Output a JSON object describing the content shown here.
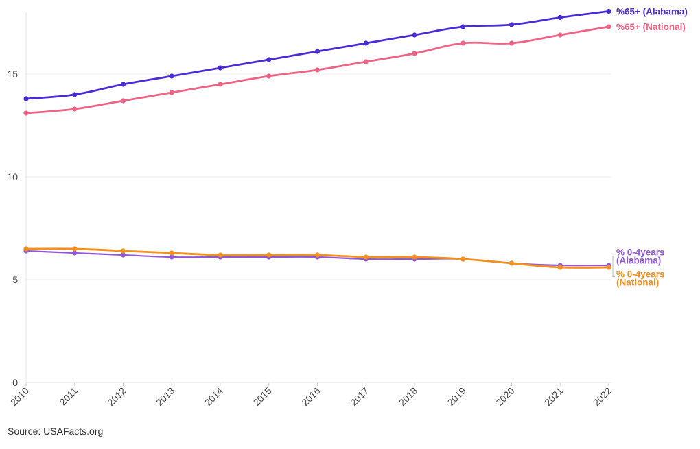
{
  "chart_data": {
    "type": "line",
    "title": "",
    "xlabel": "",
    "ylabel": "",
    "x": [
      "2010",
      "2011",
      "2012",
      "2013",
      "2014",
      "2015",
      "2016",
      "2017",
      "2018",
      "2019",
      "2020",
      "2021",
      "2022"
    ],
    "ylim": [
      0,
      18
    ],
    "yticks": [
      "0",
      "5",
      "10",
      "15"
    ],
    "grid": "horizontal",
    "legend": "end-of-line labels (right)",
    "series": [
      {
        "name": "%65+ (Alabama)",
        "label_lines": [
          "%65+ (Alabama)"
        ],
        "color": "#4a2bd4",
        "values": [
          13.8,
          14.0,
          14.5,
          14.9,
          15.3,
          15.7,
          16.1,
          16.5,
          16.9,
          17.3,
          17.4,
          17.75,
          18.05
        ]
      },
      {
        "name": "%65+ (National)",
        "label_lines": [
          "%65+ (National)"
        ],
        "color": "#ef6384",
        "values": [
          13.1,
          13.3,
          13.7,
          14.1,
          14.5,
          14.9,
          15.2,
          15.6,
          16.0,
          16.5,
          16.5,
          16.9,
          17.3
        ]
      },
      {
        "name": "% 0-4years (Alabama)",
        "label_lines": [
          "% 0-4years",
          "(Alabama)"
        ],
        "color": "#9058d6",
        "values": [
          6.4,
          6.3,
          6.2,
          6.1,
          6.1,
          6.1,
          6.1,
          6.0,
          6.0,
          6.0,
          5.8,
          5.7,
          5.7
        ]
      },
      {
        "name": "% 0-4years (National)",
        "label_lines": [
          "% 0-4years",
          "(National)"
        ],
        "color": "#f5901e",
        "values": [
          6.5,
          6.5,
          6.4,
          6.3,
          6.2,
          6.2,
          6.2,
          6.1,
          6.1,
          6.0,
          5.8,
          5.6,
          5.6
        ]
      }
    ]
  },
  "source": "Source: USAFacts.org"
}
